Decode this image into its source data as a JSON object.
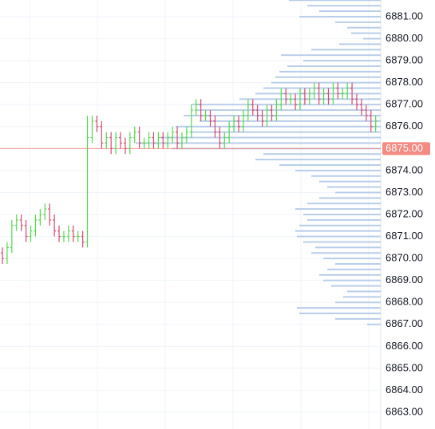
{
  "chart_data": {
    "type": "ohlc",
    "up_color": "#52d94f",
    "down_color": "#d94870",
    "ylim": [
      6862.24,
      6881.76
    ],
    "yticks": [
      {
        "value": 6863,
        "label": "6863.00"
      },
      {
        "value": 6864,
        "label": "6864.00"
      },
      {
        "value": 6865,
        "label": "6865.00"
      },
      {
        "value": 6866,
        "label": "6866.00"
      },
      {
        "value": 6867,
        "label": "6867.00"
      },
      {
        "value": 6868,
        "label": "6868.00"
      },
      {
        "value": 6869,
        "label": "6869.00"
      },
      {
        "value": 6870,
        "label": "6870.00"
      },
      {
        "value": 6871,
        "label": "6871.00"
      },
      {
        "value": 6872,
        "label": "6872.00"
      },
      {
        "value": 6873,
        "label": "6873.00"
      },
      {
        "value": 6874,
        "label": "6874.00"
      },
      {
        "value": 6876,
        "label": "6876.00"
      },
      {
        "value": 6877,
        "label": "6877.00"
      },
      {
        "value": 6878,
        "label": "6878.00"
      },
      {
        "value": 6879,
        "label": "6879.00"
      },
      {
        "value": 6880,
        "label": "6880.00"
      },
      {
        "value": 6881,
        "label": "6881.00"
      }
    ],
    "grid": true,
    "current_price": {
      "value": 6875,
      "label": "6875.00",
      "color": "#f28b82"
    },
    "ohlc": [
      [
        6870.25,
        6870.5,
        6869.75,
        6870.0
      ],
      [
        6870.0,
        6870.75,
        6869.75,
        6870.5
      ],
      [
        6870.5,
        6871.75,
        6870.25,
        6871.5
      ],
      [
        6871.5,
        6872.0,
        6871.25,
        6871.75
      ],
      [
        6871.75,
        6872.0,
        6871.25,
        6871.5
      ],
      [
        6871.5,
        6871.75,
        6870.75,
        6871.0
      ],
      [
        6871.0,
        6871.5,
        6870.75,
        6871.25
      ],
      [
        6871.25,
        6872.0,
        6871.0,
        6871.75
      ],
      [
        6871.75,
        6872.25,
        6871.5,
        6872.0
      ],
      [
        6872.0,
        6872.5,
        6871.75,
        6872.25
      ],
      [
        6872.25,
        6872.5,
        6871.5,
        6871.75
      ],
      [
        6871.75,
        6872.0,
        6871.0,
        6871.25
      ],
      [
        6871.25,
        6871.5,
        6870.75,
        6871.0
      ],
      [
        6871.0,
        6871.25,
        6870.75,
        6871.0
      ],
      [
        6871.0,
        6871.5,
        6870.75,
        6871.25
      ],
      [
        6871.25,
        6871.5,
        6870.75,
        6871.0
      ],
      [
        6871.0,
        6871.25,
        6870.75,
        6871.0
      ],
      [
        6871.0,
        6871.25,
        6870.5,
        6870.75
      ],
      [
        6870.75,
        6876.5,
        6870.5,
        6875.5
      ],
      [
        6875.5,
        6876.5,
        6875.25,
        6876.25
      ],
      [
        6876.25,
        6876.5,
        6875.75,
        6876.0
      ],
      [
        6876.0,
        6876.25,
        6875.0,
        6875.25
      ],
      [
        6875.25,
        6875.75,
        6875.0,
        6875.5
      ],
      [
        6875.5,
        6875.75,
        6874.75,
        6875.0
      ],
      [
        6875.0,
        6875.75,
        6874.75,
        6875.5
      ],
      [
        6875.5,
        6875.75,
        6875.0,
        6875.25
      ],
      [
        6875.25,
        6875.5,
        6874.75,
        6875.0
      ],
      [
        6875.0,
        6875.75,
        6874.75,
        6875.5
      ],
      [
        6875.5,
        6876.0,
        6875.25,
        6875.75
      ],
      [
        6875.75,
        6876.0,
        6875.0,
        6875.25
      ],
      [
        6875.25,
        6875.5,
        6875.0,
        6875.25
      ],
      [
        6875.25,
        6875.75,
        6875.0,
        6875.5
      ],
      [
        6875.5,
        6875.75,
        6875.0,
        6875.25
      ],
      [
        6875.25,
        6875.75,
        6875.0,
        6875.5
      ],
      [
        6875.5,
        6875.75,
        6875.0,
        6875.25
      ],
      [
        6875.25,
        6875.75,
        6875.0,
        6875.5
      ],
      [
        6875.5,
        6876.0,
        6875.25,
        6875.75
      ],
      [
        6875.75,
        6876.0,
        6875.0,
        6875.25
      ],
      [
        6875.25,
        6875.75,
        6875.0,
        6875.5
      ],
      [
        6875.5,
        6876.0,
        6875.25,
        6875.75
      ],
      [
        6875.75,
        6877.0,
        6875.5,
        6876.75
      ],
      [
        6876.75,
        6877.25,
        6876.5,
        6877.0
      ],
      [
        6877.0,
        6877.25,
        6876.25,
        6876.5
      ],
      [
        6876.5,
        6876.75,
        6876.25,
        6876.5
      ],
      [
        6876.5,
        6876.75,
        6876.0,
        6876.25
      ],
      [
        6876.25,
        6876.5,
        6875.5,
        6875.75
      ],
      [
        6875.75,
        6876.0,
        6875.0,
        6875.25
      ],
      [
        6875.25,
        6875.75,
        6875.0,
        6875.5
      ],
      [
        6875.5,
        6876.25,
        6875.25,
        6876.0
      ],
      [
        6876.0,
        6876.5,
        6875.75,
        6876.25
      ],
      [
        6876.25,
        6876.5,
        6875.75,
        6876.0
      ],
      [
        6876.0,
        6876.75,
        6875.75,
        6876.5
      ],
      [
        6876.5,
        6877.25,
        6876.25,
        6877.0
      ],
      [
        6877.0,
        6877.25,
        6876.5,
        6876.75
      ],
      [
        6876.75,
        6877.0,
        6876.25,
        6876.5
      ],
      [
        6876.5,
        6876.75,
        6876.0,
        6876.25
      ],
      [
        6876.25,
        6877.0,
        6876.0,
        6876.75
      ],
      [
        6876.75,
        6877.0,
        6876.25,
        6876.5
      ],
      [
        6876.5,
        6877.25,
        6876.25,
        6877.0
      ],
      [
        6877.0,
        6877.75,
        6876.75,
        6877.5
      ],
      [
        6877.5,
        6877.75,
        6877.0,
        6877.25
      ],
      [
        6877.25,
        6877.5,
        6877.0,
        6877.25
      ],
      [
        6877.25,
        6877.5,
        6876.75,
        6877.0
      ],
      [
        6877.0,
        6877.75,
        6876.75,
        6877.5
      ],
      [
        6877.5,
        6877.75,
        6877.0,
        6877.25
      ],
      [
        6877.25,
        6877.75,
        6877.0,
        6877.5
      ],
      [
        6877.5,
        6878.0,
        6877.25,
        6877.75
      ],
      [
        6877.75,
        6878.0,
        6877.0,
        6877.25
      ],
      [
        6877.25,
        6877.75,
        6877.0,
        6877.5
      ],
      [
        6877.5,
        6877.75,
        6877.0,
        6877.25
      ],
      [
        6877.25,
        6878.0,
        6877.0,
        6877.75
      ],
      [
        6877.75,
        6878.0,
        6877.25,
        6877.5
      ],
      [
        6877.5,
        6877.75,
        6877.25,
        6877.5
      ],
      [
        6877.5,
        6878.0,
        6877.25,
        6877.75
      ],
      [
        6877.75,
        6878.0,
        6877.0,
        6877.25
      ],
      [
        6877.25,
        6877.5,
        6876.75,
        6877.0
      ],
      [
        6877.0,
        6877.25,
        6876.5,
        6876.75
      ],
      [
        6876.75,
        6877.0,
        6876.25,
        6876.5
      ],
      [
        6876.5,
        6876.75,
        6875.75,
        6876.0
      ],
      [
        6876.0,
        6876.5,
        6875.75,
        6876.25
      ]
    ],
    "volume_profile": {
      "color": "#b9cde9",
      "prices": [
        6881.75,
        6881.5,
        6881.25,
        6881.0,
        6880.75,
        6880.5,
        6880.25,
        6880.0,
        6879.75,
        6879.5,
        6879.25,
        6879.0,
        6878.75,
        6878.5,
        6878.25,
        6878.0,
        6877.75,
        6877.5,
        6877.25,
        6877.0,
        6876.75,
        6876.5,
        6876.25,
        6876.0,
        6875.75,
        6875.5,
        6875.25,
        6875.0,
        6874.75,
        6874.5,
        6874.25,
        6874.0,
        6873.75,
        6873.5,
        6873.25,
        6873.0,
        6872.75,
        6872.5,
        6872.25,
        6872.0,
        6871.75,
        6871.5,
        6871.25,
        6871.0,
        6870.75,
        6870.5,
        6870.25,
        6870.0,
        6869.75,
        6869.5,
        6869.25,
        6869.0,
        6868.75,
        6868.5,
        6868.25,
        6868.0,
        6867.75,
        6867.5,
        6867.25,
        6867.0
      ],
      "volumes": [
        115,
        92,
        77,
        102,
        57,
        42,
        37,
        22,
        52,
        87,
        125,
        97,
        117,
        127,
        132,
        137,
        147,
        157,
        177,
        237,
        232,
        247,
        227,
        257,
        237,
        277,
        307,
        262,
        147,
        157,
        127,
        107,
        87,
        77,
        67,
        57,
        77,
        92,
        107,
        97,
        92,
        102,
        107,
        105,
        97,
        82,
        87,
        72,
        57,
        67,
        77,
        72,
        62,
        42,
        47,
        57,
        105,
        102,
        57,
        17
      ]
    }
  }
}
